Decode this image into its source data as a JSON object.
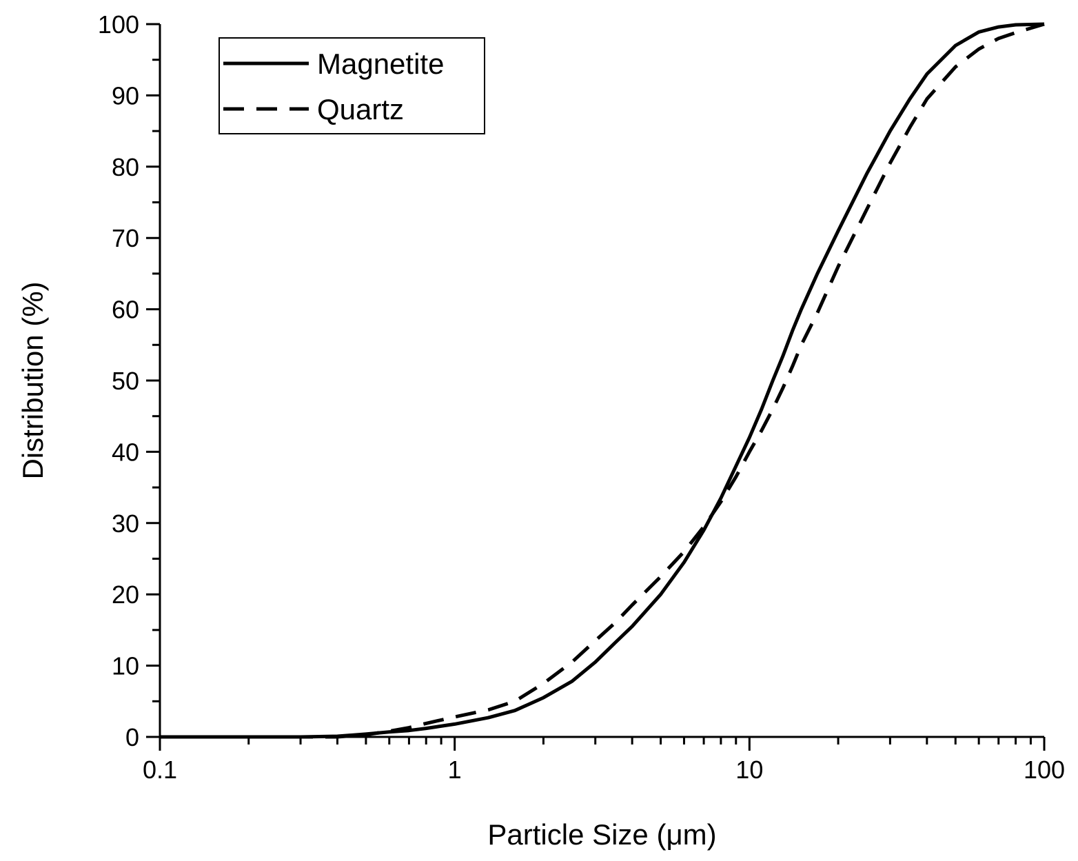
{
  "chart_data": {
    "type": "line",
    "title": "",
    "xlabel": "Particle Size (μm)",
    "ylabel": "Distribution (%)",
    "xscale": "log",
    "xlim": [
      0.1,
      100
    ],
    "ylim": [
      0,
      100
    ],
    "x_ticks": [
      0.1,
      1,
      10,
      100
    ],
    "x_tick_labels": [
      "0.1",
      "1",
      "10",
      "100"
    ],
    "y_ticks": [
      0,
      10,
      20,
      30,
      40,
      50,
      60,
      70,
      80,
      90,
      100
    ],
    "y_tick_labels": [
      "0",
      "10",
      "20",
      "30",
      "40",
      "50",
      "60",
      "70",
      "80",
      "90",
      "100"
    ],
    "grid": false,
    "legend_position": "top-left",
    "series": [
      {
        "name": "Magnetite",
        "style": "solid",
        "color": "#000000",
        "x": [
          0.1,
          0.3,
          0.4,
          0.5,
          0.6,
          0.7,
          0.8,
          1.0,
          1.3,
          1.6,
          2.0,
          2.5,
          3.0,
          3.5,
          4.0,
          5.0,
          6.0,
          7.0,
          8.0,
          9.0,
          10.0,
          11.0,
          12.0,
          13.0,
          14.0,
          15.0,
          17.0,
          20.0,
          25.0,
          30.0,
          35.0,
          40.0,
          50.0,
          60.0,
          70.0,
          80.0,
          100.0
        ],
        "y": [
          0,
          0,
          0.1,
          0.4,
          0.7,
          0.9,
          1.2,
          1.8,
          2.7,
          3.7,
          5.5,
          7.8,
          10.5,
          13.2,
          15.5,
          20.0,
          24.5,
          29.0,
          33.5,
          38.0,
          42.0,
          46.0,
          50.0,
          53.5,
          57.0,
          60.0,
          65.0,
          71.0,
          79.0,
          85.0,
          89.5,
          93.0,
          97.0,
          98.9,
          99.6,
          99.9,
          100
        ]
      },
      {
        "name": "Quartz",
        "style": "dashed",
        "color": "#000000",
        "x": [
          0.1,
          0.4,
          0.5,
          0.6,
          0.7,
          0.8,
          1.0,
          1.3,
          1.6,
          2.0,
          2.5,
          3.0,
          3.5,
          4.0,
          5.0,
          6.0,
          7.0,
          8.0,
          9.0,
          10.0,
          11.0,
          12.0,
          13.0,
          14.0,
          15.0,
          17.0,
          20.0,
          25.0,
          30.0,
          35.0,
          40.0,
          50.0,
          60.0,
          70.0,
          80.0,
          100.0
        ],
        "y": [
          0,
          0,
          0.3,
          0.8,
          1.3,
          1.9,
          2.8,
          3.8,
          5.0,
          7.5,
          10.5,
          13.5,
          16.0,
          18.5,
          22.5,
          26.0,
          29.5,
          33.0,
          36.5,
          40.0,
          43.0,
          46.0,
          49.0,
          52.0,
          55.0,
          59.5,
          66.0,
          74.0,
          80.5,
          85.5,
          89.5,
          94.0,
          96.5,
          98.0,
          98.8,
          100
        ]
      }
    ]
  }
}
